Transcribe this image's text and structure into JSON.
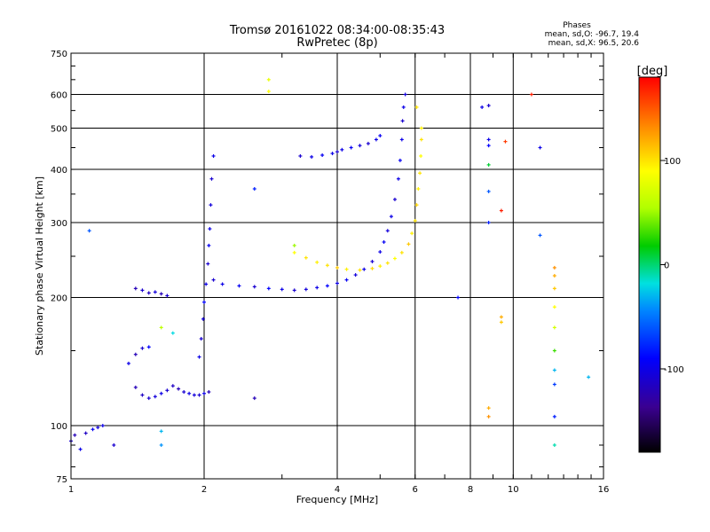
{
  "chart_data": {
    "type": "scatter",
    "title": "Tromsø 20161022 08:34:00-08:35:43",
    "subtitle": "RwPretec (8p)",
    "xlabel": "Frequency [MHz]",
    "ylabel": "Stationary phase Virtual Height [km]",
    "x_scale": "log",
    "y_scale": "log",
    "xlim": [
      1,
      16
    ],
    "ylim": [
      75,
      750
    ],
    "x_ticks": [
      1,
      2,
      4,
      6,
      8,
      10,
      16
    ],
    "x_tick_labels": [
      "1",
      "2",
      "4",
      "6",
      "8",
      "10",
      "16"
    ],
    "y_ticks": [
      75,
      100,
      200,
      300,
      400,
      500,
      600,
      750
    ],
    "y_tick_labels": [
      "75",
      "100",
      "200",
      "300",
      "400",
      "500",
      "600",
      "750"
    ],
    "grid": true,
    "stats": {
      "heading": "Phases",
      "line_o": "mean, sd,O: -96.7, 19.4",
      "line_x": "mean, sd,X:  96.5, 20.6"
    },
    "colorbar": {
      "label": "[deg]",
      "range": [
        -180,
        180
      ],
      "ticks": [
        100,
        0,
        -100
      ],
      "tick_labels": [
        "100",
        "0",
        "-100"
      ]
    },
    "series": [
      {
        "values": [
          [
            1.0,
            92,
            -110
          ],
          [
            1.02,
            95,
            -120
          ],
          [
            1.05,
            88,
            -100
          ],
          [
            1.08,
            96,
            -115
          ],
          [
            1.12,
            98,
            -95
          ],
          [
            1.15,
            99,
            -105
          ],
          [
            1.18,
            100,
            -100
          ],
          [
            1.25,
            90,
            -110
          ]
        ]
      },
      {
        "values": [
          [
            1.4,
            123,
            -120
          ],
          [
            1.45,
            118,
            -115
          ],
          [
            1.5,
            116,
            -110
          ],
          [
            1.55,
            117,
            -105
          ],
          [
            1.6,
            119,
            -100
          ],
          [
            1.65,
            121,
            -110
          ],
          [
            1.7,
            124,
            -115
          ],
          [
            1.75,
            122,
            -120
          ],
          [
            1.8,
            120,
            -110
          ],
          [
            1.85,
            119,
            -100
          ],
          [
            1.9,
            118,
            -105
          ],
          [
            1.95,
            118,
            -110
          ],
          [
            2.0,
            119,
            -100
          ],
          [
            2.05,
            120,
            -120
          ]
        ]
      },
      {
        "values": [
          [
            1.45,
            152,
            -110
          ],
          [
            1.5,
            153,
            -90
          ],
          [
            1.35,
            140,
            -100
          ],
          [
            1.4,
            147,
            -120
          ]
        ]
      },
      {
        "values": [
          [
            1.4,
            210,
            -120
          ],
          [
            1.45,
            208,
            -110
          ],
          [
            1.5,
            205,
            -115
          ],
          [
            1.55,
            206,
            -105
          ],
          [
            1.6,
            204,
            -120
          ],
          [
            1.65,
            202,
            -110
          ]
        ]
      },
      {
        "values": [
          [
            1.95,
            145,
            -100
          ],
          [
            1.97,
            160,
            -110
          ],
          [
            1.99,
            178,
            -105
          ],
          [
            2.0,
            195,
            -90
          ],
          [
            2.02,
            215,
            -100
          ],
          [
            2.04,
            240,
            -110
          ],
          [
            2.05,
            265,
            -95
          ],
          [
            2.06,
            290,
            -100
          ],
          [
            2.07,
            330,
            -105
          ],
          [
            2.08,
            380,
            -110
          ],
          [
            2.1,
            430,
            -100
          ]
        ]
      },
      {
        "values": [
          [
            2.1,
            220,
            -110
          ],
          [
            2.2,
            215,
            -100
          ],
          [
            2.4,
            213,
            -95
          ],
          [
            2.6,
            212,
            -110
          ],
          [
            2.8,
            210,
            -90
          ],
          [
            3.0,
            209,
            -100
          ],
          [
            3.2,
            208,
            -110
          ],
          [
            3.4,
            209,
            -105
          ],
          [
            3.6,
            211,
            -100
          ],
          [
            3.8,
            213,
            -90
          ],
          [
            4.0,
            216,
            -100
          ],
          [
            4.2,
            220,
            -95
          ],
          [
            4.4,
            226,
            -105
          ],
          [
            4.6,
            233,
            -100
          ],
          [
            4.8,
            243,
            -110
          ],
          [
            5.0,
            256,
            -100
          ],
          [
            5.1,
            270,
            -95
          ],
          [
            5.2,
            287,
            -105
          ],
          [
            5.3,
            310,
            -100
          ],
          [
            5.4,
            340,
            -110
          ],
          [
            5.5,
            380,
            -100
          ],
          [
            5.55,
            420,
            -95
          ],
          [
            5.6,
            470,
            -100
          ],
          [
            5.62,
            520,
            -110
          ],
          [
            5.65,
            560,
            -100
          ],
          [
            5.7,
            600,
            -105
          ]
        ]
      },
      {
        "values": [
          [
            3.2,
            255,
            90
          ],
          [
            3.4,
            248,
            100
          ],
          [
            3.6,
            242,
            95
          ],
          [
            3.8,
            238,
            100
          ],
          [
            4.0,
            235,
            110
          ],
          [
            4.2,
            233,
            95
          ],
          [
            4.5,
            232,
            100
          ],
          [
            4.8,
            234,
            105
          ],
          [
            5.0,
            237,
            95
          ],
          [
            5.2,
            241,
            100
          ],
          [
            5.4,
            247,
            90
          ],
          [
            5.6,
            255,
            100
          ],
          [
            5.8,
            267,
            110
          ],
          [
            5.9,
            283,
            95
          ],
          [
            6.0,
            303,
            100
          ],
          [
            6.05,
            330,
            105
          ],
          [
            6.1,
            360,
            95
          ],
          [
            6.15,
            392,
            100
          ],
          [
            6.18,
            430,
            90
          ],
          [
            6.2,
            470,
            100
          ],
          [
            6.2,
            500,
            95
          ],
          [
            6.05,
            560,
            100
          ]
        ]
      },
      {
        "values": [
          [
            3.3,
            430,
            -110
          ],
          [
            3.5,
            428,
            -100
          ],
          [
            3.7,
            432,
            -95
          ],
          [
            3.9,
            436,
            -100
          ],
          [
            4.0,
            440,
            -110
          ],
          [
            4.1,
            445,
            -100
          ],
          [
            4.3,
            450,
            -95
          ],
          [
            4.5,
            455,
            -105
          ],
          [
            4.7,
            460,
            -110
          ],
          [
            4.9,
            470,
            -100
          ],
          [
            5.0,
            480,
            -95
          ]
        ]
      },
      {
        "values": [
          [
            2.6,
            360,
            -80
          ],
          [
            2.8,
            650,
            80
          ],
          [
            2.8,
            610,
            90
          ],
          [
            1.1,
            287,
            -60
          ],
          [
            1.6,
            97,
            -30
          ],
          [
            1.6,
            90,
            -40
          ],
          [
            1.6,
            170,
            60
          ],
          [
            1.7,
            165,
            -20
          ],
          [
            2.6,
            116,
            -120
          ],
          [
            3.2,
            265,
            50
          ]
        ]
      },
      {
        "values": [
          [
            8.5,
            560,
            -100
          ],
          [
            8.8,
            565,
            -110
          ],
          [
            8.8,
            470,
            -100
          ],
          [
            8.8,
            455,
            -90
          ],
          [
            8.8,
            410,
            10
          ],
          [
            8.8,
            355,
            -60
          ],
          [
            8.8,
            300,
            -80
          ],
          [
            8.8,
            110,
            120
          ],
          [
            8.8,
            105,
            130
          ],
          [
            9.4,
            320,
            170
          ],
          [
            9.4,
            180,
            120
          ],
          [
            9.4,
            175,
            110
          ],
          [
            9.6,
            465,
            160
          ],
          [
            11.5,
            280,
            -60
          ],
          [
            11.5,
            450,
            -100
          ],
          [
            11.0,
            600,
            170
          ],
          [
            12.4,
            235,
            130
          ],
          [
            12.4,
            225,
            120
          ],
          [
            12.4,
            210,
            110
          ],
          [
            12.4,
            190,
            90
          ],
          [
            12.4,
            170,
            70
          ],
          [
            12.4,
            150,
            30
          ],
          [
            12.4,
            135,
            -30
          ],
          [
            12.4,
            125,
            -70
          ],
          [
            12.4,
            105,
            -80
          ],
          [
            12.4,
            90,
            -10
          ],
          [
            14.8,
            130,
            -30
          ],
          [
            7.5,
            200,
            -90
          ]
        ]
      }
    ]
  }
}
